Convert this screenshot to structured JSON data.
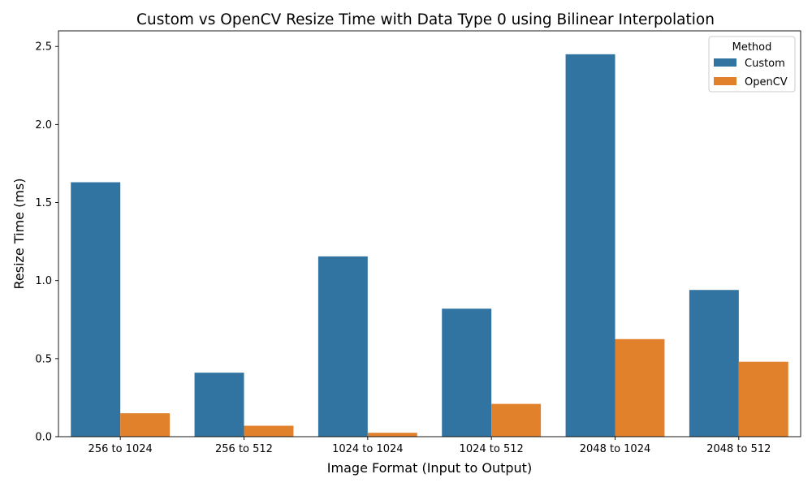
{
  "chart_data": {
    "type": "bar",
    "title": "Custom vs OpenCV Resize Time with Data Type 0 using Bilinear Interpolation",
    "xlabel": "Image Format (Input to Output)",
    "ylabel": "Resize Time (ms)",
    "categories": [
      "256 to 1024",
      "256 to 512",
      "1024 to 1024",
      "1024 to 512",
      "2048 to 1024",
      "2048 to 512"
    ],
    "series": [
      {
        "name": "Custom",
        "color": "#3274a1",
        "values": [
          1.63,
          0.41,
          1.155,
          0.82,
          2.45,
          0.94
        ]
      },
      {
        "name": "OpenCV",
        "color": "#e1812c",
        "values": [
          0.15,
          0.07,
          0.025,
          0.21,
          0.625,
          0.48
        ]
      }
    ],
    "ylim": [
      0,
      2.6
    ],
    "yticks": [
      0.0,
      0.5,
      1.0,
      1.5,
      2.0,
      2.5
    ],
    "ytick_labels": [
      "0.0",
      "0.5",
      "1.0",
      "1.5",
      "2.0",
      "2.5"
    ],
    "grid": false,
    "legend": {
      "title": "Method",
      "position": "top-right"
    }
  }
}
